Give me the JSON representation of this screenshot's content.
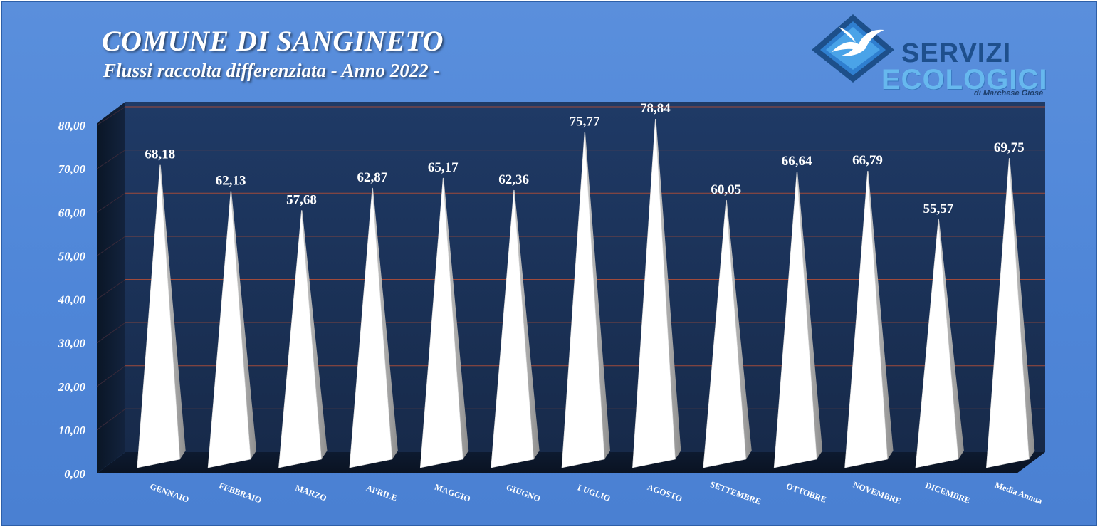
{
  "header": {
    "title": "COMUNE DI SANGINETO",
    "subtitle": "Flussi raccolta differenziata - Anno 2022 -"
  },
  "logo": {
    "line1": "SERVIZI",
    "line2": "ECOLOGICI",
    "line3": "di Marchese Giosè"
  },
  "colors": {
    "background": "#4f86d8",
    "plot_back": "#1b2f52",
    "gridline": "#a04a3a",
    "cone": "#ffffff"
  },
  "chart_data": {
    "type": "bar",
    "bar_shape": "3d-pyramid",
    "title": "COMUNE DI SANGINETO",
    "subtitle": "Flussi raccolta differenziata - Anno 2022 -",
    "categories": [
      "GENNAIO",
      "FEBBRAIO",
      "MARZO",
      "APRILE",
      "MAGGIO",
      "GIUGNO",
      "LUGLIO",
      "AGOSTO",
      "SETTEMBRE",
      "OTTOBRE",
      "NOVEMBRE",
      "DICEMBRE",
      "Media Annua"
    ],
    "values": [
      68.18,
      62.13,
      57.68,
      62.87,
      65.17,
      62.36,
      75.77,
      78.84,
      60.05,
      66.64,
      66.79,
      55.57,
      69.75
    ],
    "data_labels": [
      "68,18",
      "62,13",
      "57,68",
      "62,87",
      "65,17",
      "62,36",
      "75,77",
      "78,84",
      "60,05",
      "66,64",
      "66,79",
      "55,57",
      "69,75"
    ],
    "ylim": [
      0,
      80
    ],
    "yticks": [
      0,
      10,
      20,
      30,
      40,
      50,
      60,
      70,
      80
    ],
    "ytick_labels": [
      "0,00",
      "10,00",
      "20,00",
      "30,00",
      "40,00",
      "50,00",
      "60,00",
      "70,00",
      "80,00"
    ],
    "grid": true,
    "legend": "none"
  }
}
